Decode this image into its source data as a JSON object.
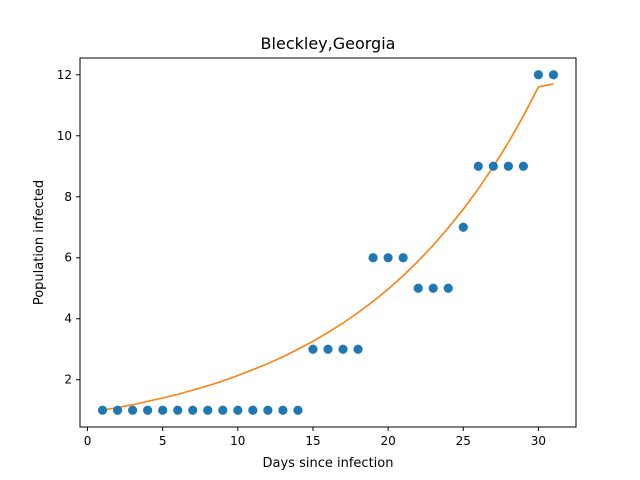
{
  "chart_data": {
    "type": "scatter",
    "title": "Bleckley,Georgia",
    "xlabel": "Days since infection",
    "ylabel": "Population infected",
    "xlim": [
      -0.5,
      32.5
    ],
    "ylim": [
      0.45,
      12.55
    ],
    "xticks": [
      0,
      5,
      10,
      15,
      20,
      25,
      30
    ],
    "yticks": [
      2,
      4,
      6,
      8,
      10,
      12
    ],
    "grid": false,
    "series": [
      {
        "type": "scatter",
        "color": "#1f77b4",
        "x": [
          1,
          2,
          3,
          4,
          5,
          6,
          7,
          8,
          9,
          10,
          11,
          12,
          13,
          14,
          15,
          16,
          17,
          18,
          19,
          20,
          21,
          22,
          23,
          24,
          25,
          26,
          27,
          28,
          29,
          30,
          31
        ],
        "y": [
          1,
          1,
          1,
          1,
          1,
          1,
          1,
          1,
          1,
          1,
          1,
          1,
          1,
          1,
          3,
          3,
          3,
          3,
          6,
          6,
          6,
          5,
          5,
          5,
          7,
          9,
          9,
          9,
          9,
          12,
          12
        ]
      },
      {
        "type": "line",
        "color": "#ff7f0e",
        "x": [
          1,
          2,
          3,
          4,
          5,
          6,
          7,
          8,
          9,
          10,
          11,
          12,
          13,
          14,
          15,
          16,
          17,
          18,
          19,
          20,
          21,
          22,
          23,
          24,
          25,
          26,
          27,
          28,
          29,
          30,
          31
        ],
        "y": [
          1.0,
          1.09,
          1.18,
          1.29,
          1.4,
          1.52,
          1.66,
          1.8,
          1.96,
          2.14,
          2.33,
          2.53,
          2.75,
          3.0,
          3.26,
          3.55,
          3.86,
          4.2,
          4.57,
          4.97,
          5.41,
          5.89,
          6.41,
          6.98,
          7.59,
          8.26,
          8.99,
          9.78,
          10.65,
          11.6,
          11.7
        ]
      }
    ]
  }
}
